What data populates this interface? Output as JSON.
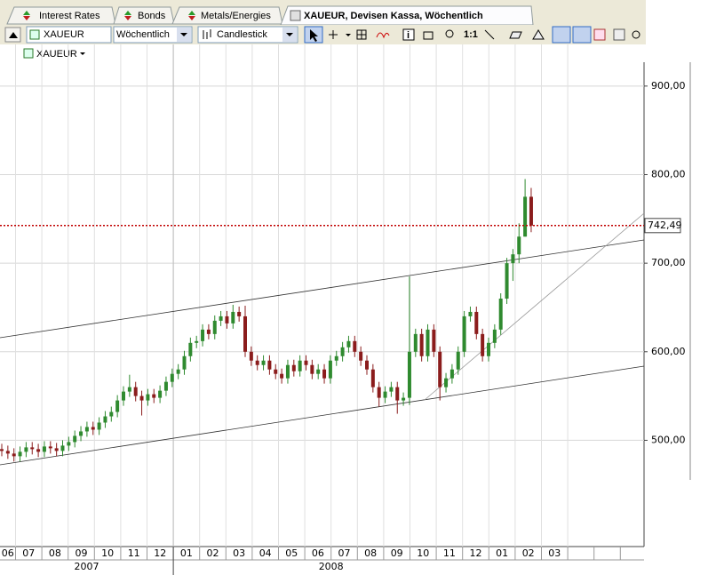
{
  "tabs": [
    "Interest Rates",
    "Bonds",
    "Metals/Energies",
    "XAUEUR, Devisen Kassa, Wöchentlich"
  ],
  "toolbar": {
    "symbol": "XAUEUR",
    "period": "Wöchentlich",
    "style": "Candlestick",
    "zoom": "1:1"
  },
  "chart_data": {
    "type": "candlestick",
    "legend": "XAUEUR",
    "open": [
      490,
      488,
      485,
      482,
      487,
      492,
      490,
      487,
      493,
      491,
      488,
      494,
      498,
      505,
      510,
      515,
      512,
      520,
      527,
      532,
      545,
      555,
      560,
      550,
      545,
      552,
      548,
      556,
      566,
      575,
      580,
      595,
      610,
      612,
      625,
      620,
      635,
      640,
      632,
      645,
      640,
      600,
      590,
      585,
      590,
      580,
      575,
      570,
      585,
      578,
      590,
      585,
      575,
      580,
      570,
      590,
      595,
      605,
      612,
      600,
      590,
      580,
      560,
      548,
      555,
      560,
      545,
      548,
      600,
      620,
      595,
      625,
      600,
      560,
      570,
      580,
      600,
      640,
      645,
      620,
      595,
      610,
      625,
      660,
      700,
      710,
      730,
      775
    ],
    "high": [
      496,
      494,
      491,
      493,
      498,
      498,
      496,
      499,
      499,
      497,
      500,
      504,
      511,
      516,
      521,
      521,
      526,
      533,
      538,
      551,
      561,
      574,
      566,
      556,
      558,
      558,
      562,
      572,
      581,
      586,
      601,
      616,
      618,
      631,
      631,
      641,
      646,
      646,
      653,
      651,
      652,
      606,
      596,
      596,
      596,
      586,
      581,
      591,
      591,
      596,
      596,
      591,
      586,
      586,
      596,
      601,
      611,
      618,
      618,
      606,
      596,
      586,
      566,
      561,
      566,
      566,
      554,
      685,
      626,
      626,
      631,
      631,
      606,
      576,
      586,
      606,
      646,
      651,
      651,
      626,
      616,
      631,
      666,
      706,
      716,
      745,
      795,
      785
    ],
    "low": [
      482,
      479,
      476,
      476,
      481,
      484,
      481,
      481,
      485,
      482,
      482,
      488,
      492,
      499,
      504,
      506,
      506,
      514,
      521,
      526,
      539,
      549,
      544,
      528,
      539,
      542,
      542,
      550,
      560,
      569,
      574,
      589,
      604,
      606,
      614,
      614,
      629,
      626,
      626,
      634,
      594,
      584,
      579,
      579,
      574,
      569,
      564,
      564,
      572,
      572,
      579,
      569,
      569,
      564,
      564,
      584,
      589,
      599,
      594,
      584,
      574,
      554,
      538,
      542,
      549,
      530,
      539,
      540,
      594,
      589,
      589,
      594,
      545,
      554,
      564,
      574,
      594,
      634,
      614,
      589,
      589,
      604,
      619,
      654,
      680,
      700,
      730,
      735
    ],
    "close": [
      488,
      485,
      482,
      487,
      492,
      490,
      487,
      493,
      491,
      488,
      494,
      498,
      505,
      510,
      515,
      512,
      520,
      527,
      532,
      545,
      555,
      560,
      550,
      545,
      552,
      548,
      556,
      566,
      575,
      580,
      595,
      610,
      612,
      625,
      620,
      635,
      640,
      632,
      645,
      640,
      600,
      590,
      585,
      590,
      580,
      575,
      570,
      585,
      578,
      590,
      585,
      575,
      580,
      570,
      590,
      595,
      605,
      612,
      600,
      590,
      580,
      560,
      548,
      555,
      560,
      545,
      548,
      600,
      620,
      595,
      625,
      600,
      560,
      570,
      580,
      600,
      640,
      645,
      620,
      595,
      610,
      625,
      660,
      700,
      710,
      730,
      775,
      742.49
    ],
    "up_color": "#2f8a2f",
    "down_color": "#8b1c1c",
    "ylim": [
      380,
      942
    ],
    "yticks": [
      {
        "value": 500,
        "label": "500,00"
      },
      {
        "value": 600,
        "label": "600,00"
      },
      {
        "value": 700,
        "label": "700,00"
      },
      {
        "value": 800,
        "label": "800,00"
      },
      {
        "value": 900,
        "label": "900,00"
      }
    ],
    "grid": true,
    "last": 742.49,
    "last_label": "742,49",
    "last_color": "#c00000",
    "months": [
      "06",
      "07",
      "08",
      "09",
      "10",
      "11",
      "12",
      "01",
      "02",
      "03",
      "04",
      "05",
      "06",
      "07",
      "08",
      "09",
      "10",
      "11",
      "12",
      "01",
      "02",
      "03"
    ],
    "years": [
      "2007",
      "2008"
    ]
  }
}
